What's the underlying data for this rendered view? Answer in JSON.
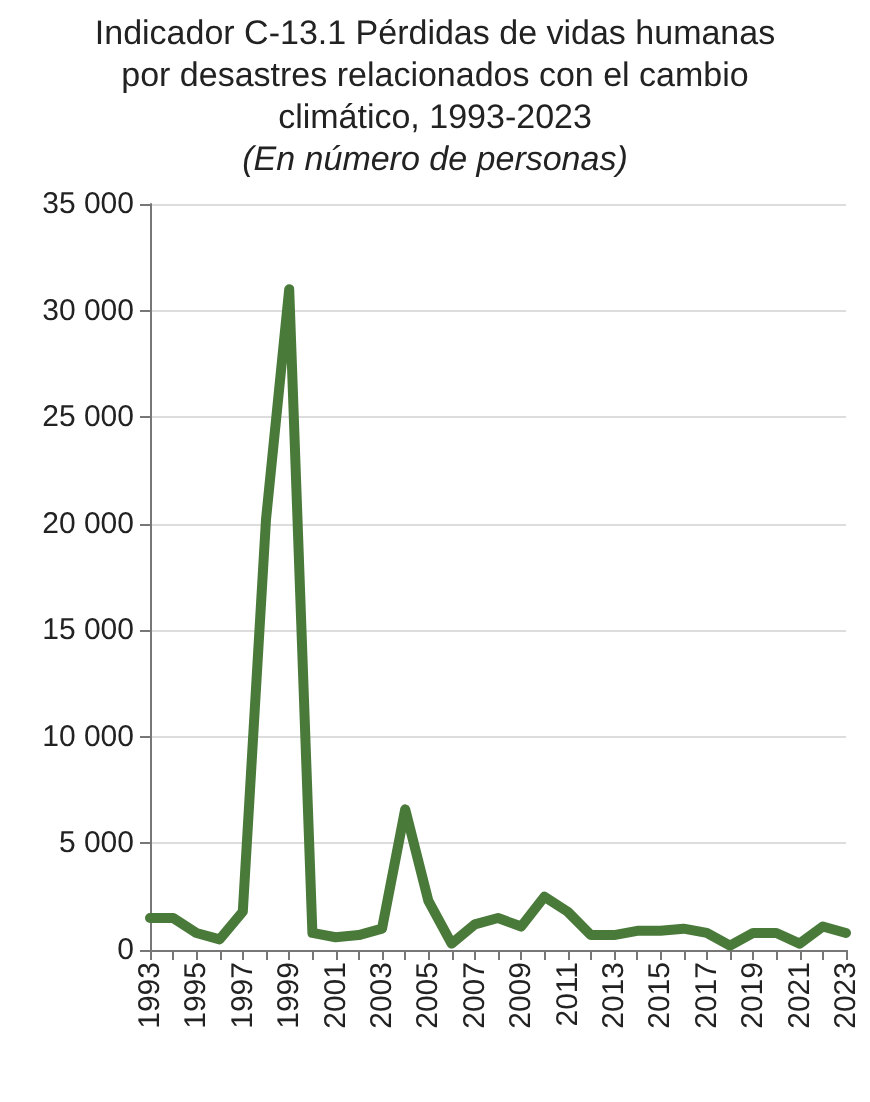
{
  "chart_data": {
    "type": "line",
    "title": "Indicador C-13.1 Pérdidas de vidas humanas\npor desastres relacionados con el cambio\nclimático, 1993-2023",
    "subtitle": "(En número de personas)",
    "categories": [
      "1993",
      null,
      "1995",
      null,
      "1997",
      null,
      "1999",
      null,
      "2001",
      null,
      "2003",
      null,
      "2005",
      null,
      "2007",
      null,
      "2009",
      null,
      "2011",
      null,
      "2013",
      null,
      "2015",
      null,
      "2017",
      null,
      "2019",
      null,
      "2021",
      null,
      "2023"
    ],
    "series": [
      {
        "color": "#4a7a3a",
        "values": [
          1500,
          1500,
          800,
          500,
          1800,
          20200,
          31000,
          800,
          600,
          700,
          1000,
          6600,
          2300,
          300,
          1200,
          1500,
          1100,
          2500,
          1800,
          700,
          700,
          900,
          900,
          1000,
          800,
          200,
          800,
          800,
          300,
          1100,
          800
        ]
      }
    ],
    "ylim": [
      0,
      35000
    ],
    "yticks": [
      {
        "value": 0,
        "label": "0"
      },
      {
        "value": 5000,
        "label": "5 000"
      },
      {
        "value": 10000,
        "label": "10 000"
      },
      {
        "value": 15000,
        "label": "15 000"
      },
      {
        "value": 20000,
        "label": "20 000"
      },
      {
        "value": 25000,
        "label": "25 000"
      },
      {
        "value": 30000,
        "label": "30 000"
      },
      {
        "value": 35000,
        "label": "35 000"
      }
    ],
    "grid": "y",
    "marker": "none",
    "line_style": "solid"
  }
}
